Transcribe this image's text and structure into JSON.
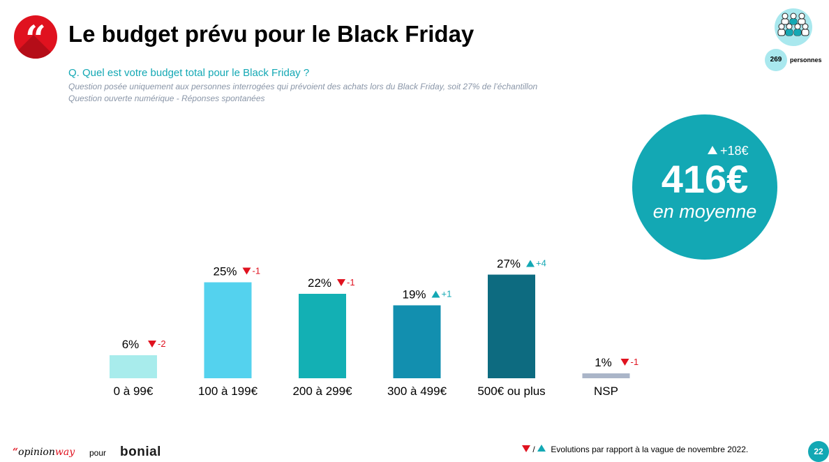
{
  "header": {
    "title": "Le budget prévu pour le Black Friday",
    "question": "Q. Quel est votre budget total pour le Black Friday ?",
    "note_1": "Question posée uniquement aux personnes interrogées qui prévoient des achats lors du Black Friday, soit 27% de l’échantillon",
    "note_2": "Question ouverte numérique - Réponses spontanées"
  },
  "sample": {
    "count": "269",
    "unit": "personnes",
    "icon": "people-group-icon"
  },
  "average": {
    "evolution": "+18€",
    "value": "416€",
    "label": "en moyenne"
  },
  "chart_data": {
    "type": "bar",
    "categories": [
      "0 à 99€",
      "100 à 199€",
      "200 à 299€",
      "300 à 499€",
      "500€ ou plus",
      "NSP"
    ],
    "values": [
      6,
      25,
      22,
      19,
      27,
      1
    ],
    "value_labels": [
      "6%",
      "25%",
      "22%",
      "19%",
      "27%",
      "1%"
    ],
    "evolutions": [
      "-2",
      "-1",
      "-1",
      "+1",
      "+4",
      "-1"
    ],
    "colors": [
      "#a8ecec",
      "#54d2ee",
      "#13b0b4",
      "#128faf",
      "#0d6b80",
      "#aab5c8"
    ],
    "ylim": [
      0,
      30
    ],
    "title": "",
    "xlabel": "",
    "ylabel": ""
  },
  "colors": {
    "accent": "#13a8b4",
    "decrease": "#e0121f",
    "increase": "#13a8b4",
    "brand_red": "#e0121f"
  },
  "footer": {
    "logo_mark": "“",
    "logo_opinion": "opinion",
    "logo_way": "way",
    "pour": "pour",
    "brand": "bonial",
    "legend_sep": "/",
    "legend_text": "Evolutions par rapport à la vague de novembre 2022.",
    "page": "22"
  }
}
